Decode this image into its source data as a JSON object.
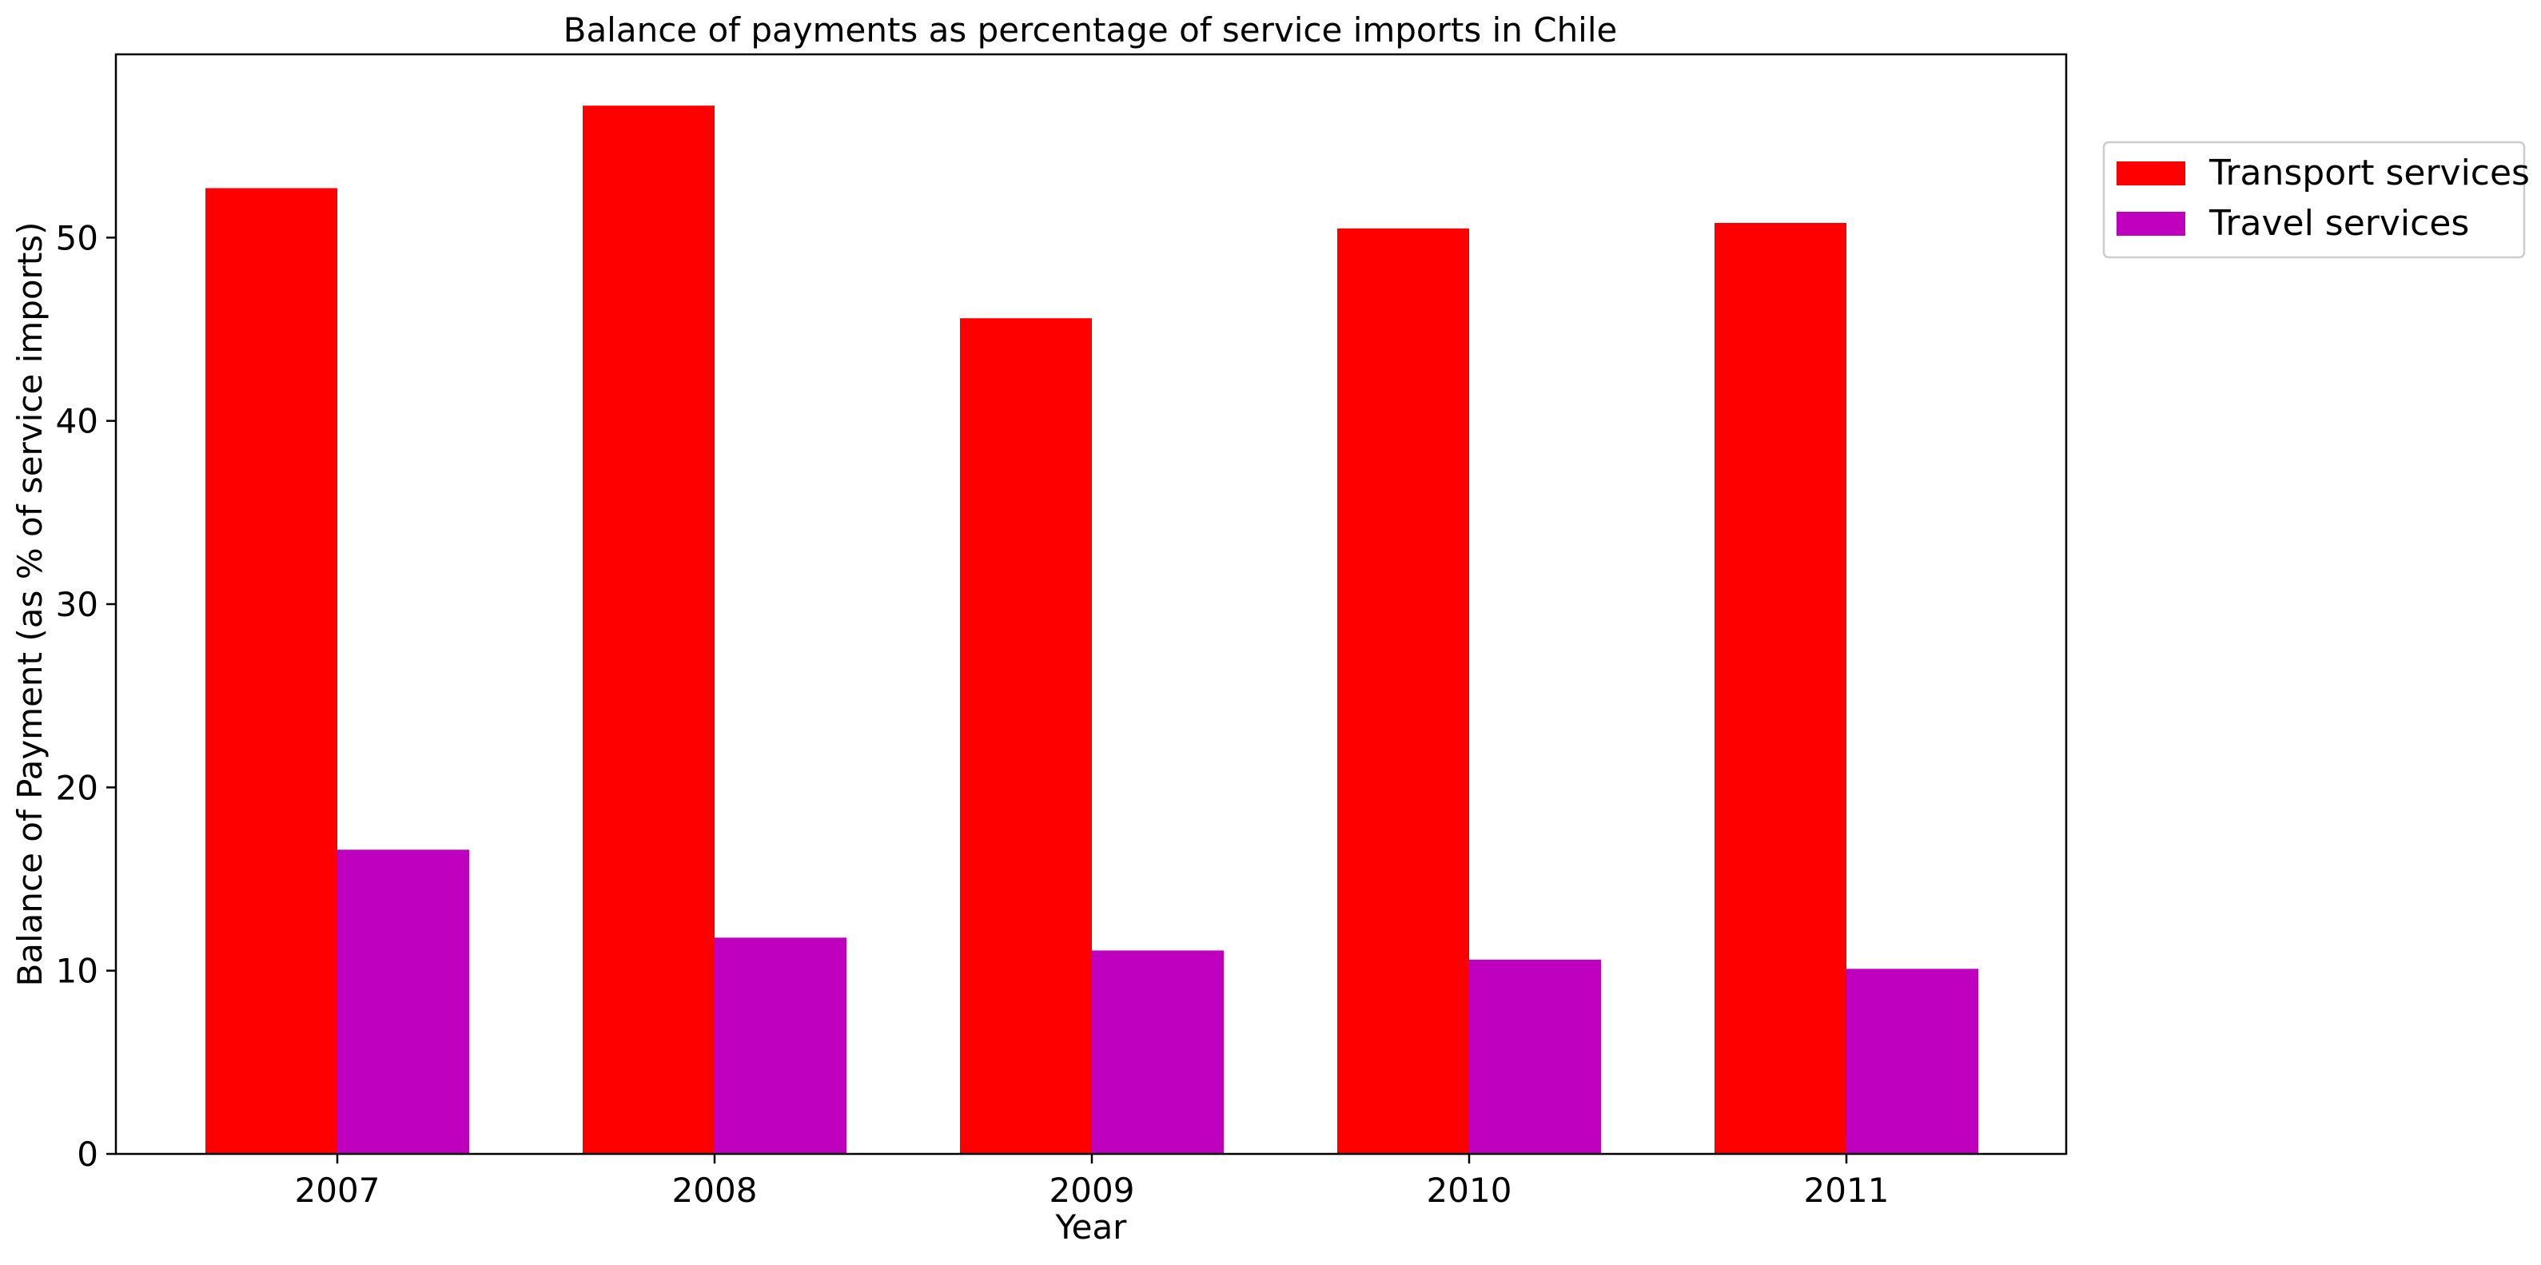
{
  "chart_data": {
    "type": "bar",
    "title": "Balance of payments as percentage of service imports in Chile",
    "xlabel": "Year",
    "ylabel": "Balance of Payment (as % of service imports)",
    "categories": [
      "2007",
      "2008",
      "2009",
      "2010",
      "2011"
    ],
    "series": [
      {
        "name": "Transport services",
        "color": "#ff0000",
        "values": [
          52.7,
          57.2,
          45.6,
          50.5,
          50.8
        ]
      },
      {
        "name": "Travel services",
        "color": "#bf00bf",
        "values": [
          16.6,
          11.8,
          11.1,
          10.6,
          10.1
        ]
      }
    ],
    "ylim": [
      0,
      60
    ],
    "yticks": [
      0,
      10,
      20,
      30,
      40,
      50
    ],
    "grid": false,
    "legend_position": "outside-top-right"
  }
}
